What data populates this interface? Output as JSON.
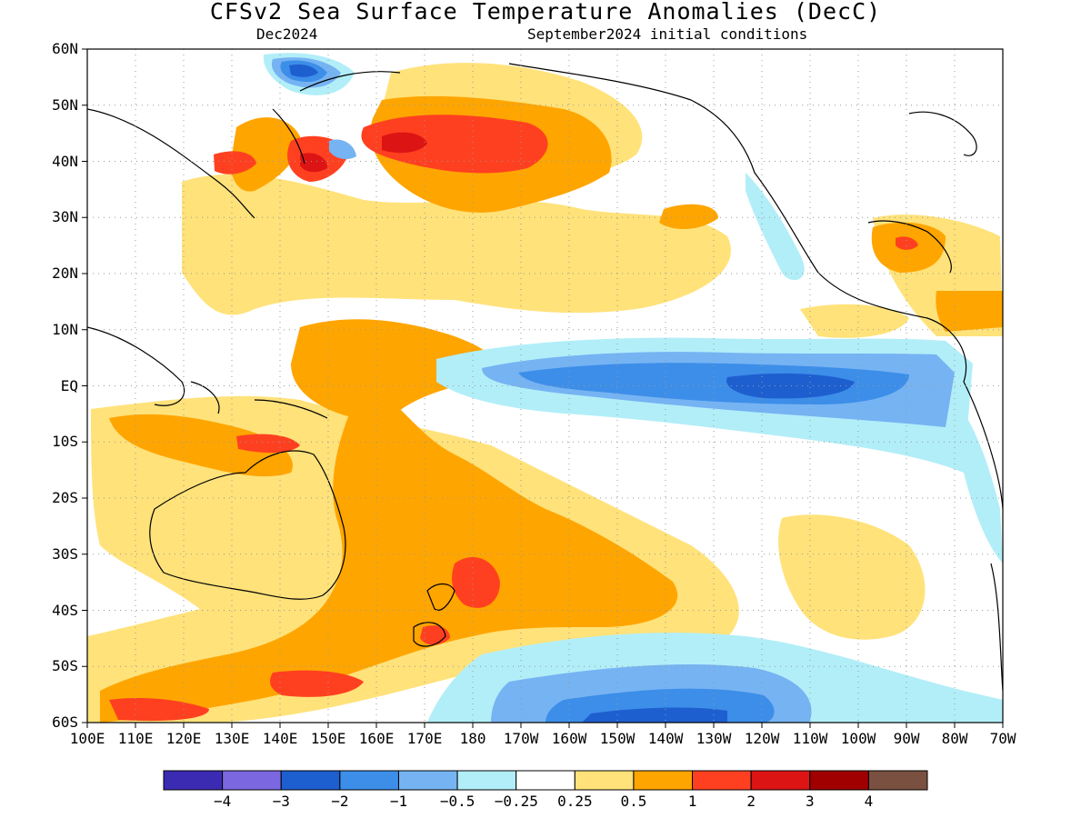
{
  "header": {
    "title": "CFSv2 Sea Surface Temperature Anomalies (DecC)",
    "left_subtitle": "Dec2024",
    "right_subtitle": "September2024 initial conditions"
  },
  "axes": {
    "lat_labels": [
      "60N",
      "50N",
      "40N",
      "30N",
      "20N",
      "10N",
      "EQ",
      "10S",
      "20S",
      "30S",
      "40S",
      "50S",
      "60S"
    ],
    "lon_labels": [
      "100E",
      "110E",
      "120E",
      "130E",
      "140E",
      "150E",
      "160E",
      "170E",
      "180",
      "170W",
      "160W",
      "150W",
      "140W",
      "130W",
      "120W",
      "110W",
      "100W",
      "90W",
      "80W",
      "70W"
    ]
  },
  "colorbar": {
    "colors": [
      "#3b2bb3",
      "#7b68e0",
      "#1e5fd0",
      "#3c8ee8",
      "#76b3f3",
      "#b2eef8",
      "#ffffff",
      "#ffe27a",
      "#ffa500",
      "#ff4020",
      "#dc1414",
      "#a00000",
      "#7a5040"
    ],
    "labels": [
      "−4",
      "−3",
      "−2",
      "−1",
      "−0.5",
      "−0.25",
      "0.25",
      "0.5",
      "1",
      "2",
      "3",
      "4"
    ]
  }
}
